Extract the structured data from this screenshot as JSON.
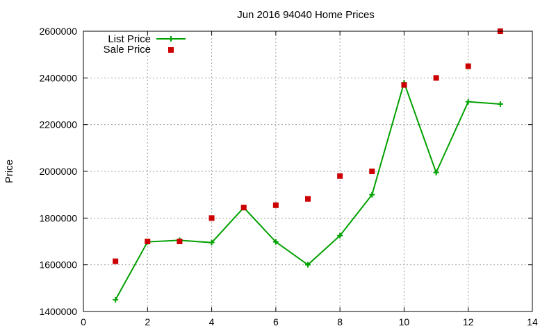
{
  "chart_data": {
    "type": "line",
    "title": "Jun 2016 94040 Home Prices",
    "xlabel": "",
    "ylabel": "Price",
    "xlim": [
      0,
      14
    ],
    "ylim": [
      1400000,
      2600000
    ],
    "x_ticks": [
      "0",
      "2",
      "4",
      "6",
      "8",
      "10",
      "12",
      "14"
    ],
    "y_ticks": [
      "1400000",
      "1600000",
      "1800000",
      "2000000",
      "2200000",
      "2400000",
      "2600000"
    ],
    "grid": true,
    "legend_position": "top-left",
    "series": [
      {
        "name": "List Price",
        "style": "line-with-plus-markers",
        "color": "#00a000",
        "x": [
          1,
          2,
          3,
          4,
          5,
          6,
          7,
          8,
          9,
          10,
          11,
          12,
          13
        ],
        "y": [
          1450000,
          1698000,
          1705000,
          1695000,
          1845000,
          1698000,
          1600000,
          1725000,
          1900000,
          2380000,
          1995000,
          2298000,
          2288000
        ]
      },
      {
        "name": "Sale Price",
        "style": "square-points",
        "color": "#cc0000",
        "x": [
          1,
          2,
          3,
          4,
          5,
          6,
          7,
          8,
          9,
          10,
          11,
          12,
          13
        ],
        "y": [
          1615000,
          1700000,
          1700000,
          1800000,
          1845000,
          1855000,
          1882000,
          1980000,
          2000000,
          2370000,
          2400000,
          2450000,
          2600000
        ]
      }
    ]
  }
}
